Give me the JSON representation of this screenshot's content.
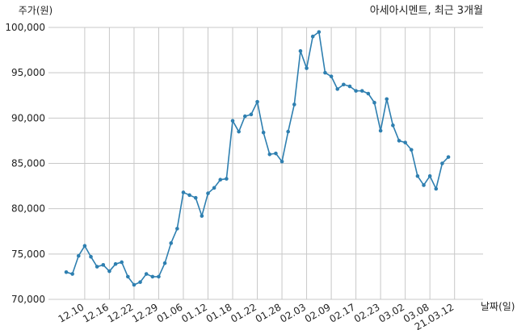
{
  "chart_data": {
    "type": "line",
    "title": "아세아시멘트, 최근 3개월",
    "ylabel": "주가(원)",
    "xlabel": "날짜(일)",
    "ylim": [
      70000,
      100000
    ],
    "yticks": [
      70000,
      75000,
      80000,
      85000,
      90000,
      95000,
      100000
    ],
    "yticklabels": [
      "70,000",
      "75,000",
      "80,000",
      "85,000",
      "90,000",
      "95,000",
      "100,000"
    ],
    "xticklabels": [
      "12.10",
      "12.16",
      "12.22",
      "12.29",
      "01.06",
      "01.12",
      "01.18",
      "01.22",
      "01.28",
      "02.03",
      "02.09",
      "02.17",
      "02.23",
      "03.02",
      "03.08",
      "21.03.12"
    ],
    "xtick_index": [
      3,
      7,
      11,
      15,
      19,
      23,
      27,
      31,
      35,
      39,
      43,
      47,
      51,
      55,
      59,
      63
    ],
    "grid": true,
    "color": "#2e7fb0",
    "series": [
      {
        "values": [
          73000,
          72800,
          74800,
          75900,
          74700,
          73600,
          73800,
          73100,
          73900,
          74100,
          72500,
          71600,
          71900,
          72800,
          72500,
          72500,
          74000,
          76200,
          77800,
          81800,
          81500,
          81200,
          79200,
          81700,
          82300,
          83200,
          83300,
          89700,
          88500,
          90200,
          90400,
          91800,
          88400,
          86000,
          86100,
          85200,
          88500,
          91500,
          97400,
          95500,
          99000,
          99500,
          95000,
          94600,
          93200,
          93700,
          93500,
          93000,
          93000,
          92700,
          91700,
          88600,
          92100,
          89200,
          87500,
          87300,
          86500,
          83600,
          82600,
          83600,
          82200,
          85000,
          85700
        ]
      }
    ]
  }
}
